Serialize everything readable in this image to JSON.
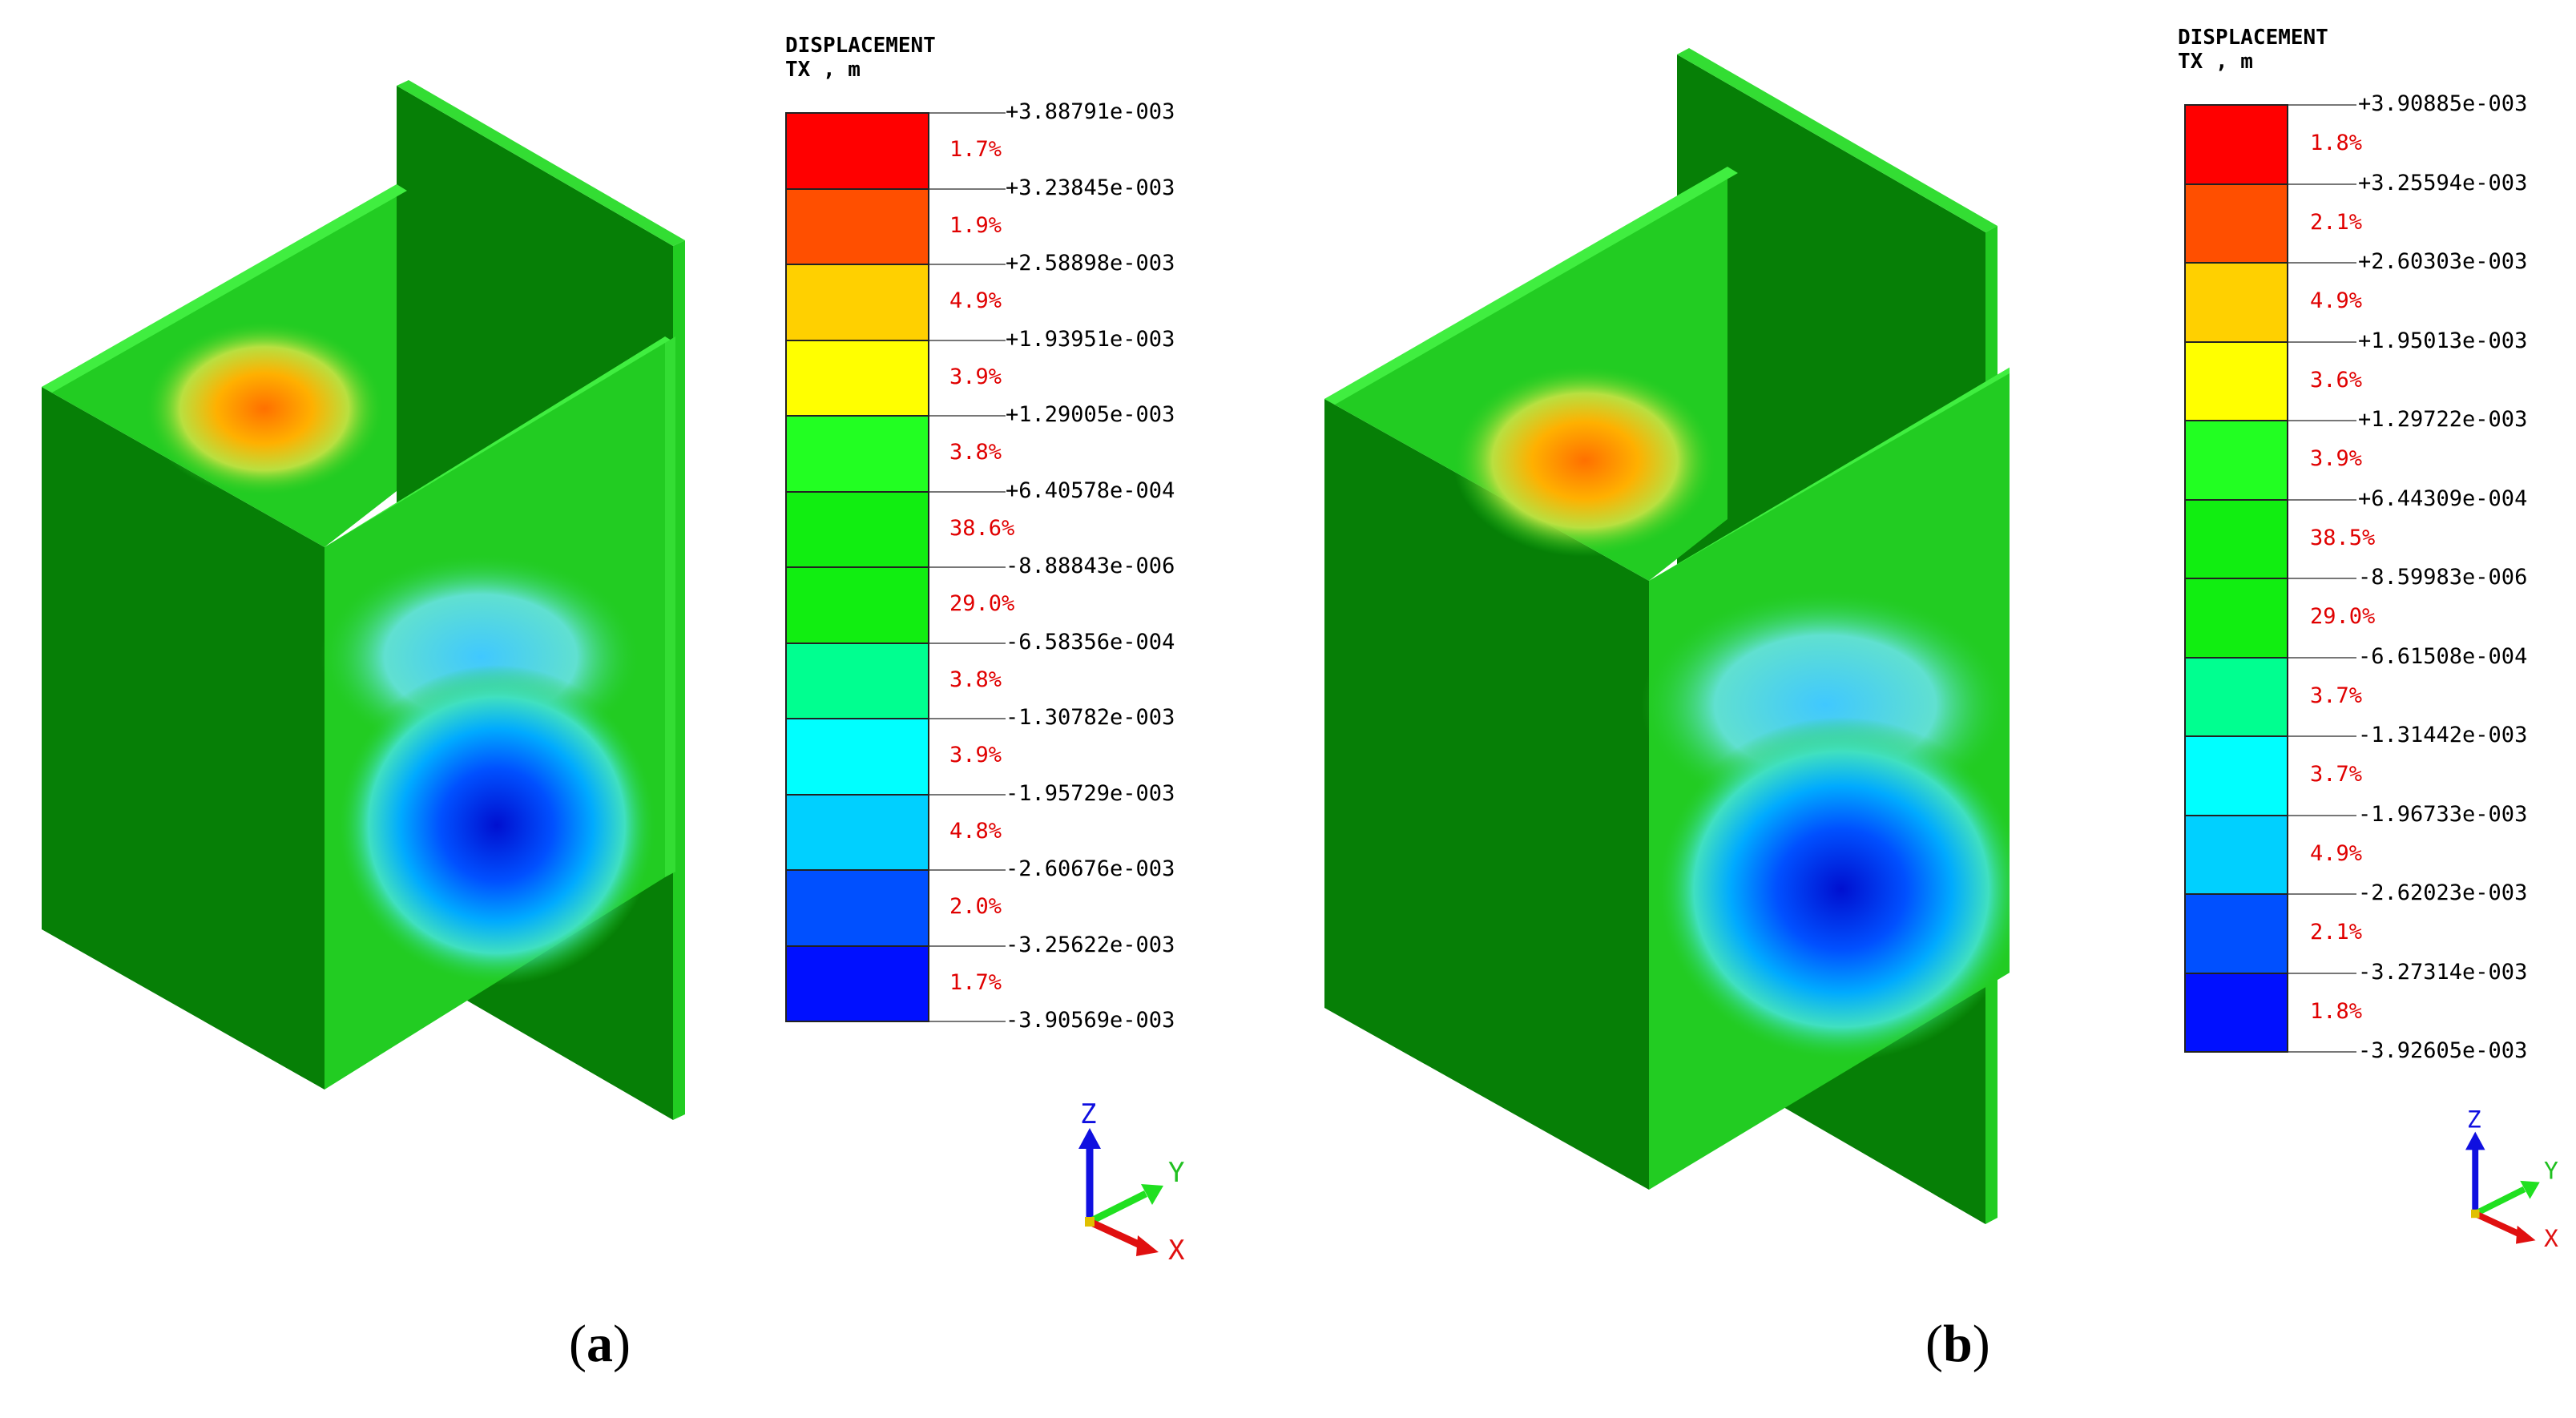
{
  "panels": [
    {
      "id": "a",
      "caption_letter": "a",
      "legend_title_line1": "DISPLACEMENT",
      "legend_title_line2": "TX , m",
      "ticks": [
        "+3.88791e-003",
        "+3.23845e-003",
        "+2.58898e-003",
        "+1.93951e-003",
        "+1.29005e-003",
        "+6.40578e-004",
        "-8.88843e-006",
        "-6.58356e-004",
        "-1.30782e-003",
        "-1.95729e-003",
        "-2.60676e-003",
        "-3.25622e-003",
        "-3.90569e-003"
      ],
      "percentages": [
        "1.7%",
        "1.9%",
        "4.9%",
        "3.9%",
        "3.8%",
        "38.6%",
        "29.0%",
        "3.8%",
        "3.9%",
        "4.8%",
        "2.0%",
        "1.7%"
      ]
    },
    {
      "id": "b",
      "caption_letter": "b",
      "legend_title_line1": "DISPLACEMENT",
      "legend_title_line2": "TX , m",
      "ticks": [
        "+3.90885e-003",
        "+3.25594e-003",
        "+2.60303e-003",
        "+1.95013e-003",
        "+1.29722e-003",
        "+6.44309e-004",
        "-8.59983e-006",
        "-6.61508e-004",
        "-1.31442e-003",
        "-1.96733e-003",
        "-2.62023e-003",
        "-3.27314e-003",
        "-3.92605e-003"
      ],
      "percentages": [
        "1.8%",
        "2.1%",
        "4.9%",
        "3.6%",
        "3.9%",
        "38.5%",
        "29.0%",
        "3.7%",
        "3.7%",
        "4.9%",
        "2.1%",
        "1.8%"
      ]
    }
  ],
  "band_colors": [
    "#ff0000",
    "#ff4f00",
    "#ffd000",
    "#ffff00",
    "#22ff22",
    "#11ee11",
    "#11ee11",
    "#00ff90",
    "#00ffff",
    "#00d0ff",
    "#0050ff",
    "#0010ff"
  ],
  "axis_labels": {
    "z": "Z",
    "y": "Y",
    "x": "X"
  },
  "axis_colors": {
    "z": "#1010e0",
    "y": "#20e020",
    "x": "#e01010"
  }
}
